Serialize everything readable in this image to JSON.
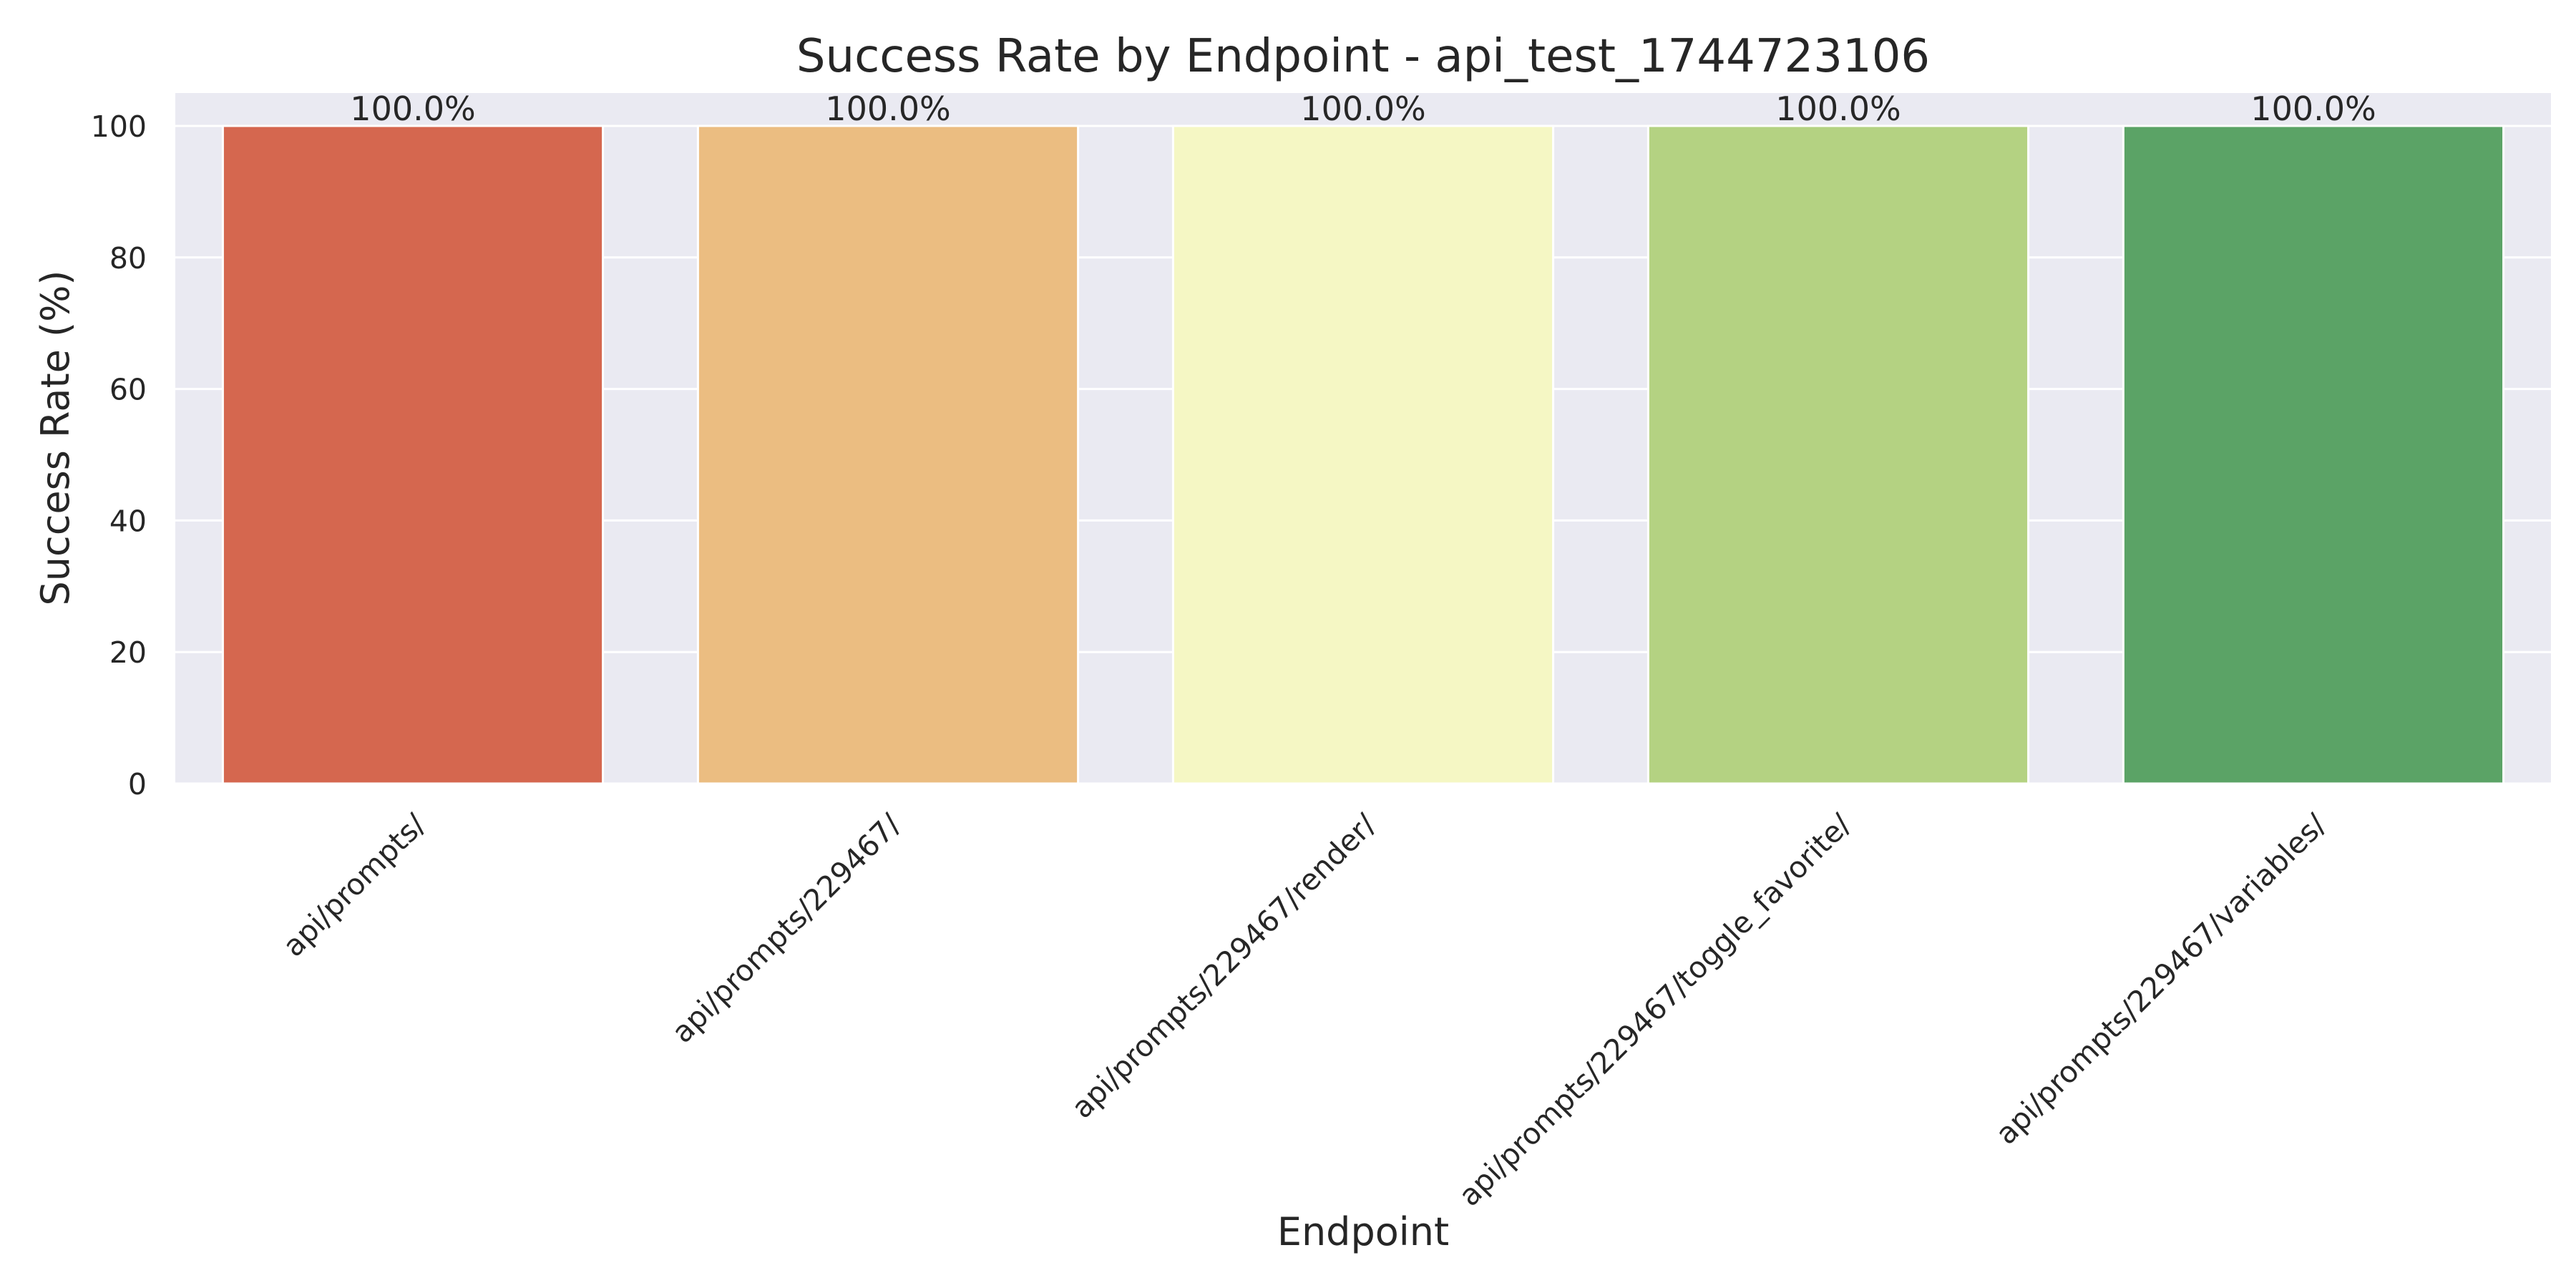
{
  "chart_data": {
    "type": "bar",
    "title": "Success Rate by Endpoint - api_test_1744723106",
    "xlabel": "Endpoint",
    "ylabel": "Success Rate (%)",
    "categories": [
      "api/prompts/",
      "api/prompts/229467/",
      "api/prompts/229467/render/",
      "api/prompts/229467/toggle_favorite/",
      "api/prompts/229467/variables/"
    ],
    "values": [
      100.0,
      100.0,
      100.0,
      100.0,
      100.0
    ],
    "value_labels": [
      "100.0%",
      "100.0%",
      "100.0%",
      "100.0%",
      "100.0%"
    ],
    "colors": [
      "#d5674f",
      "#ebbd81",
      "#f5f7c4",
      "#b4d282",
      "#5ba366"
    ],
    "ylim": [
      0,
      105
    ],
    "yticks": [
      0,
      20,
      40,
      60,
      80,
      100
    ],
    "grid": true,
    "background": "#eaeaf2",
    "legend": "none"
  }
}
